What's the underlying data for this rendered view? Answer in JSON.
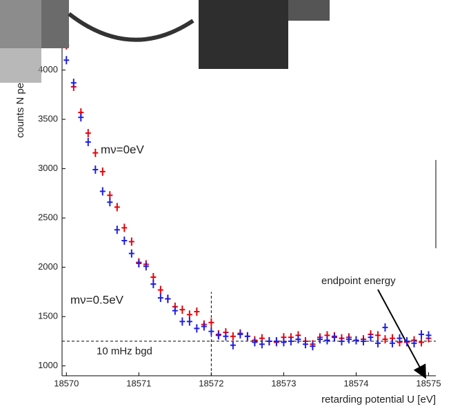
{
  "chart_data": {
    "type": "scatter",
    "y_label": "counts N pe",
    "x_label": "retarding potential U [eV]",
    "annotations": [
      "mν=0eV",
      "mν=0.5eV",
      "10 mHz bgd",
      "endpoint energy"
    ],
    "annotation_colors": [
      "#e8000b",
      "#1f1fe0",
      "#000000",
      "#000000"
    ],
    "x": [
      18570.0,
      18570.1,
      18570.2,
      18570.3,
      18570.4,
      18570.5,
      18570.6,
      18570.7,
      18570.8,
      18570.9,
      18571.0,
      18571.1,
      18571.2,
      18571.3,
      18571.4,
      18571.5,
      18571.6,
      18571.7,
      18571.8,
      18571.9,
      18572.0,
      18572.1,
      18572.2,
      18572.3,
      18572.4,
      18572.5,
      18572.6,
      18572.7,
      18572.8,
      18572.9,
      18573.0,
      18573.1,
      18573.2,
      18573.3,
      18573.4,
      18573.5,
      18573.6,
      18573.7,
      18573.8,
      18573.9,
      18574.0,
      18574.1,
      18574.2,
      18574.3,
      18574.4,
      18574.5,
      18574.6,
      18574.7,
      18574.8,
      18574.9,
      18575.0
    ],
    "series": [
      {
        "name": "mν=0eV",
        "color": "#e8000b",
        "values": [
          4250,
          3830,
          3570,
          3360,
          3160,
          2970,
          2730,
          2610,
          2400,
          2260,
          2050,
          2030,
          1900,
          1770,
          1680,
          1600,
          1570,
          1520,
          1550,
          1420,
          1440,
          1320,
          1340,
          1300,
          1330,
          1300,
          1260,
          1280,
          1250,
          1240,
          1290,
          1290,
          1310,
          1250,
          1220,
          1290,
          1310,
          1300,
          1280,
          1290,
          1260,
          1270,
          1320,
          1310,
          1270,
          1280,
          1240,
          1240,
          1260,
          1240,
          1280
        ]
      },
      {
        "name": "mν=0.5eV",
        "color": "#1f1fe0",
        "values": [
          4100,
          3870,
          3520,
          3270,
          2990,
          2770,
          2660,
          2380,
          2270,
          2140,
          2040,
          2010,
          1830,
          1690,
          1680,
          1560,
          1450,
          1450,
          1380,
          1400,
          1350,
          1310,
          1300,
          1210,
          1320,
          1300,
          1240,
          1220,
          1250,
          1250,
          1240,
          1250,
          1270,
          1220,
          1200,
          1270,
          1260,
          1290,
          1250,
          1270,
          1260,
          1250,
          1290,
          1230,
          1390,
          1230,
          1280,
          1250,
          1230,
          1320,
          1310
        ]
      }
    ],
    "background_level": 1250,
    "cut_line_x": 18572,
    "cut_line_top": 1750,
    "xlim": [
      18569.94,
      18575.1
    ],
    "xticks": [
      18570,
      18571,
      18572,
      18573,
      18574,
      18575
    ],
    "ylim": [
      900,
      4710
    ],
    "yticks": [
      1000,
      1500,
      2000,
      2500,
      3000,
      3500,
      4000
    ]
  }
}
